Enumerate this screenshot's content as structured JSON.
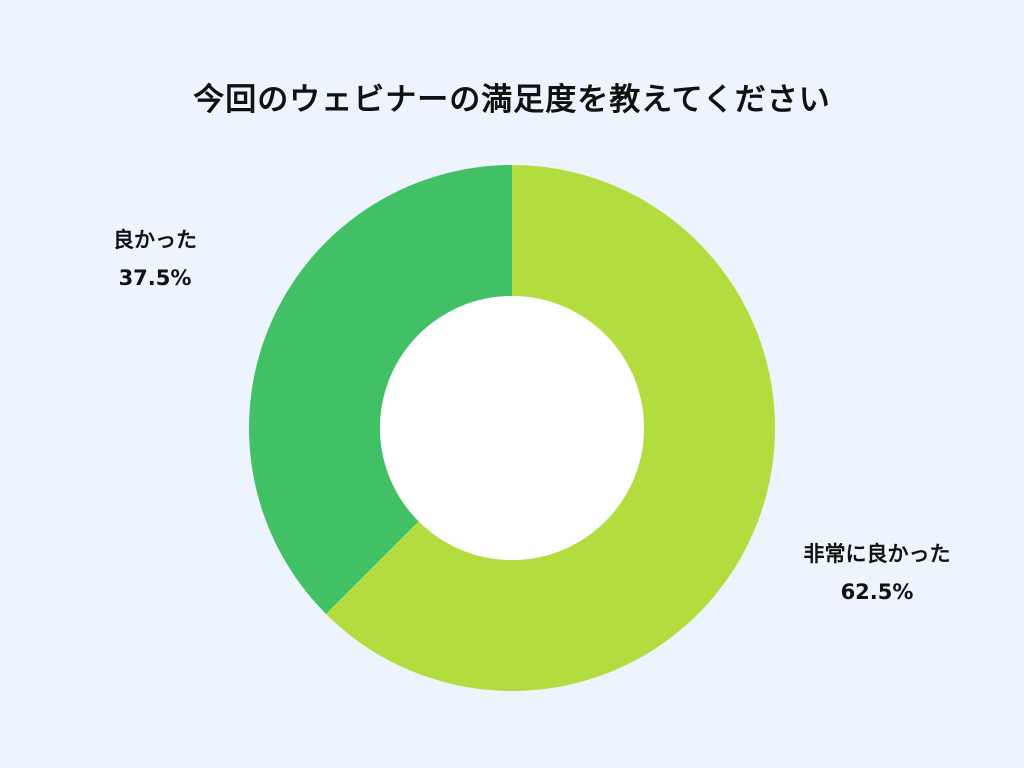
{
  "title": "今回のウェビナーの満足度を教えてください",
  "colors": {
    "background": "#eef4fd",
    "hole": "#ffffff"
  },
  "chart_data": {
    "type": "pie",
    "donut": true,
    "title": "今回のウェビナーの満足度を教えてください",
    "start_angle_deg": 0,
    "direction": "clockwise",
    "slices": [
      {
        "label": "非常に良かった",
        "value": 62.5,
        "display": "62.5%",
        "color": "#b3dd3f"
      },
      {
        "label": "良かった",
        "value": 37.5,
        "display": "37.5%",
        "color": "#42c065"
      }
    ]
  }
}
